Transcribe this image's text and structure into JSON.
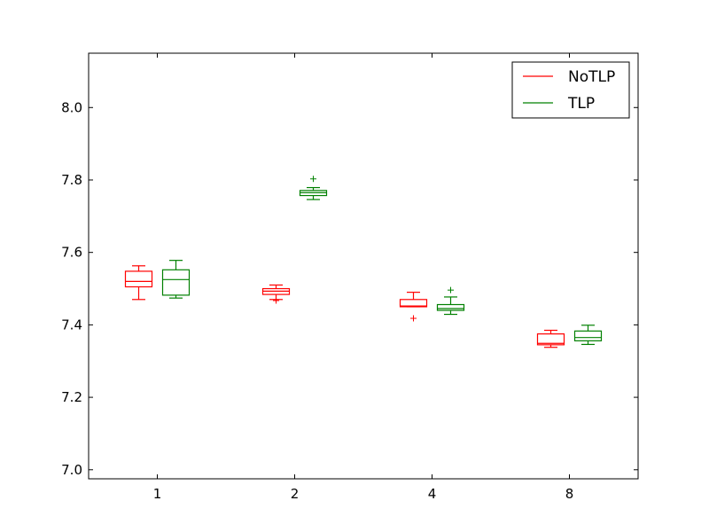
{
  "chart_data": {
    "type": "box",
    "title": "",
    "xlabel": "",
    "ylabel": "",
    "categories": [
      "1",
      "2",
      "4",
      "8"
    ],
    "ylim": [
      6.975,
      8.15
    ],
    "yticks": [
      7.0,
      7.2,
      7.4,
      7.6,
      7.8,
      8.0
    ],
    "ytick_labels": [
      "7.0",
      "7.2",
      "7.4",
      "7.6",
      "7.8",
      "8.0"
    ],
    "grid": false,
    "legend_position": "top-right",
    "series": [
      {
        "name": "NoTLP",
        "color": "#ff0000",
        "boxes": [
          {
            "whisker_low": 7.47,
            "q1": 7.505,
            "median": 7.52,
            "q3": 7.548,
            "whisker_high": 7.563,
            "outliers": []
          },
          {
            "whisker_low": 7.47,
            "q1": 7.484,
            "median": 7.493,
            "q3": 7.5,
            "whisker_high": 7.51,
            "outliers": [
              7.467
            ]
          },
          {
            "whisker_low": 7.45,
            "q1": 7.45,
            "median": 7.452,
            "q3": 7.47,
            "whisker_high": 7.49,
            "outliers": [
              7.418
            ]
          },
          {
            "whisker_low": 7.338,
            "q1": 7.345,
            "median": 7.349,
            "q3": 7.375,
            "whisker_high": 7.385,
            "outliers": []
          }
        ]
      },
      {
        "name": "TLP",
        "color": "#008000",
        "boxes": [
          {
            "whisker_low": 7.474,
            "q1": 7.482,
            "median": 7.525,
            "q3": 7.552,
            "whisker_high": 7.578,
            "outliers": []
          },
          {
            "whisker_low": 7.746,
            "q1": 7.757,
            "median": 7.765,
            "q3": 7.771,
            "whisker_high": 7.779,
            "outliers": [
              7.803
            ]
          },
          {
            "whisker_low": 7.429,
            "q1": 7.44,
            "median": 7.445,
            "q3": 7.456,
            "whisker_high": 7.477,
            "outliers": [
              7.496
            ]
          },
          {
            "whisker_low": 7.346,
            "q1": 7.356,
            "median": 7.365,
            "q3": 7.383,
            "whisker_high": 7.399,
            "outliers": []
          }
        ]
      }
    ]
  }
}
